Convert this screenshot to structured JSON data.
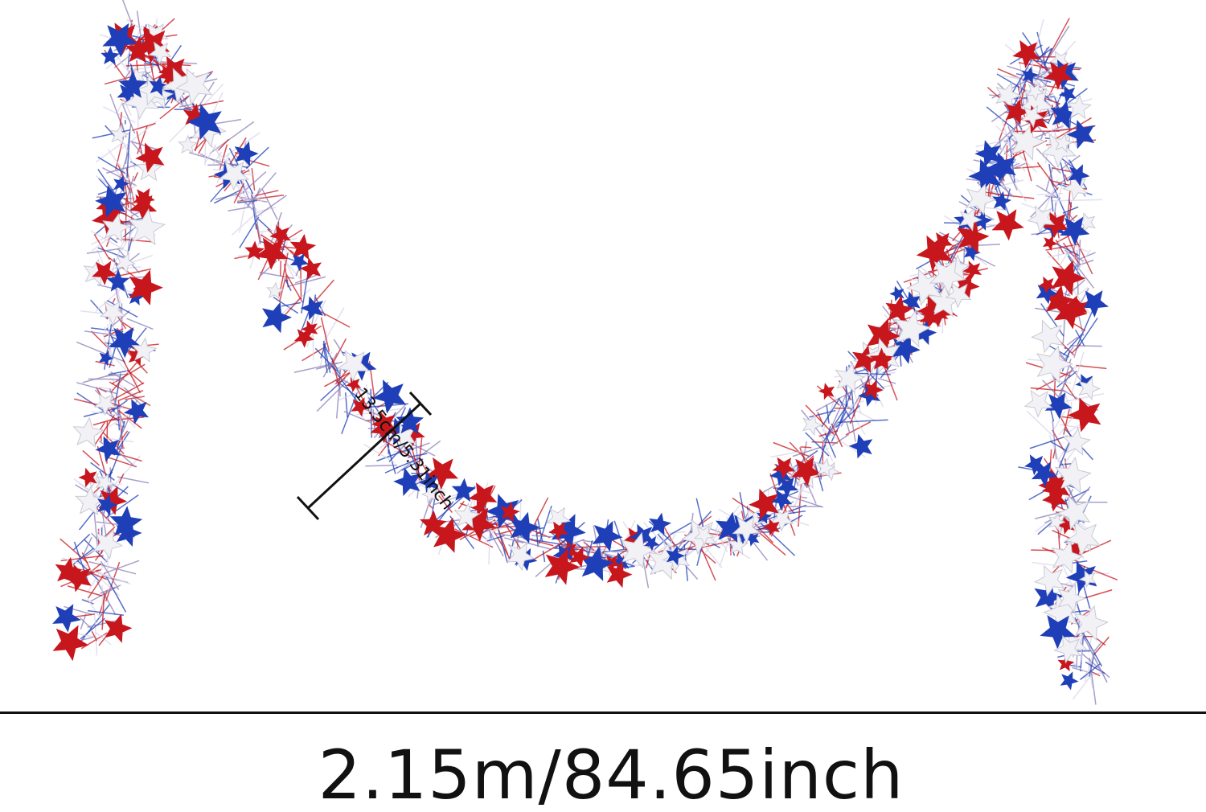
{
  "product": {
    "width_label": "13.5cm/5.31inch",
    "length_label": "2.15m/84.65inch"
  },
  "colors": {
    "red": "#c8161d",
    "blue": "#1f3fb8",
    "white": "#f2f2f6",
    "tinsel": "#8c7fb8",
    "dimension_line": "#111111"
  }
}
